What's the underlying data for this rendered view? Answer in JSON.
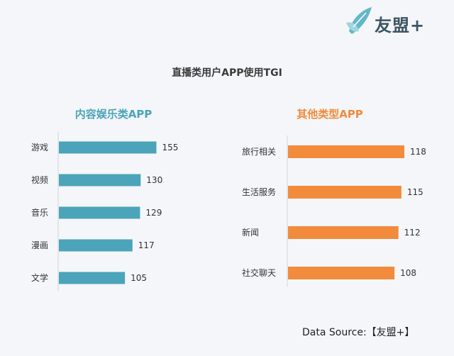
{
  "brand": {
    "name": "友盟+",
    "accent": "#4fa8b8"
  },
  "title": "直播类用户APP使用TGI",
  "source": "Data Source:【友盟+】",
  "chart_data": [
    {
      "type": "bar",
      "orientation": "horizontal",
      "title": "内容娱乐类APP",
      "title_color": "#4ba4b9",
      "bar_color": "#4ba4b9",
      "categories": [
        "游戏",
        "视频",
        "音乐",
        "漫画",
        "文学"
      ],
      "values": [
        155,
        130,
        129,
        117,
        105
      ],
      "grid": false,
      "legend": "none"
    },
    {
      "type": "bar",
      "orientation": "horizontal",
      "title": "其他类型APP",
      "title_color": "#f28b3c",
      "bar_color": "#f28b3c",
      "categories": [
        "旅行相关",
        "生活服务",
        "新闻",
        "社交聊天"
      ],
      "values": [
        118,
        115,
        112,
        108
      ],
      "grid": false,
      "legend": "none"
    }
  ]
}
